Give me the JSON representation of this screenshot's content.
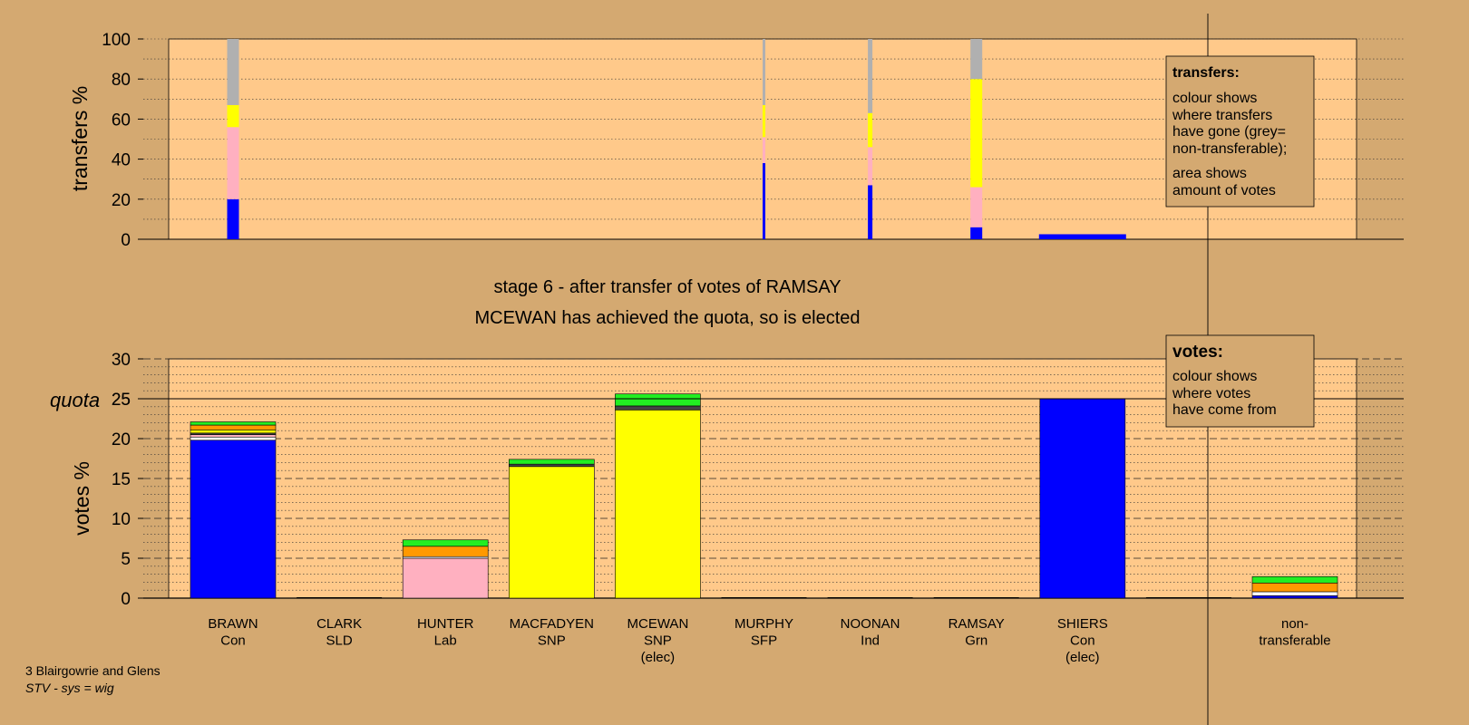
{
  "colors": {
    "page_bg": "#d4a971",
    "plot_bg": "#ffc98a",
    "Con": "#0000ff",
    "Lab": "#ffb0c0",
    "SNP": "#ffff00",
    "Grn": "#22ee22",
    "SFP": "#ff9900",
    "Ind": "#444444",
    "SLD": "#ffffff",
    "nontransferable": "#b0b0b0"
  },
  "headings": {
    "stage": "stage 6 - after transfer of votes of RAMSAY",
    "status": "MCEWAN has achieved the quota, so is elected"
  },
  "footer": {
    "line1": "3 Blairgowrie and Glens",
    "line2": "STV - sys = wig"
  },
  "legends": {
    "transfers": {
      "title": "transfers:",
      "lines1": [
        "colour shows",
        "where transfers",
        "have gone (grey=",
        "non-transferable);"
      ],
      "lines2": [
        "area shows",
        "amount of votes"
      ]
    },
    "votes": {
      "title": "votes:",
      "lines": [
        "colour shows",
        "where votes",
        "have come from"
      ]
    }
  },
  "chart_data": [
    {
      "type": "bar",
      "ylabel": "transfers %",
      "ylim": [
        0,
        100
      ],
      "yticks": [
        0,
        20,
        40,
        60,
        80,
        100
      ],
      "note": "stacked 100% bars; bar width proportional to amount of votes transferred",
      "bars": [
        {
          "candidate": "BRAWN",
          "segments": [
            {
              "party": "Con",
              "value": 20
            },
            {
              "party": "Lab",
              "value": 36
            },
            {
              "party": "SNP",
              "value": 11
            },
            {
              "party": "nontransferable",
              "value": 33
            }
          ]
        },
        {
          "candidate": "MURPHY",
          "segments": [
            {
              "party": "Con",
              "value": 38
            },
            {
              "party": "Lab",
              "value": 13
            },
            {
              "party": "SNP",
              "value": 16
            },
            {
              "party": "nontransferable",
              "value": 33
            }
          ]
        },
        {
          "candidate": "NOONAN",
          "segments": [
            {
              "party": "Con",
              "value": 27
            },
            {
              "party": "Lab",
              "value": 19
            },
            {
              "party": "SNP",
              "value": 17
            },
            {
              "party": "nontransferable",
              "value": 37
            }
          ]
        },
        {
          "candidate": "RAMSAY",
          "segments": [
            {
              "party": "Con",
              "value": 6
            },
            {
              "party": "Lab",
              "value": 20
            },
            {
              "party": "SNP",
              "value": 54
            },
            {
              "party": "nontransferable",
              "value": 20
            }
          ]
        },
        {
          "candidate": "SHIERS",
          "segments": [
            {
              "party": "Con",
              "value": 2.5
            }
          ]
        }
      ]
    },
    {
      "type": "bar",
      "ylabel": "votes %",
      "ylim": [
        0,
        30
      ],
      "yticks": [
        0,
        5,
        10,
        15,
        20,
        25,
        30
      ],
      "quota": {
        "label": "quota",
        "value": 25
      },
      "categories": [
        {
          "name": "BRAWN",
          "party": "Con",
          "elected": ""
        },
        {
          "name": "CLARK",
          "party": "SLD",
          "elected": ""
        },
        {
          "name": "HUNTER",
          "party": "Lab",
          "elected": ""
        },
        {
          "name": "MACFADYEN",
          "party": "SNP",
          "elected": ""
        },
        {
          "name": "MCEWAN",
          "party": "SNP",
          "elected": "(elec)"
        },
        {
          "name": "MURPHY",
          "party": "SFP",
          "elected": ""
        },
        {
          "name": "NOONAN",
          "party": "Ind",
          "elected": ""
        },
        {
          "name": "RAMSAY",
          "party": "Grn",
          "elected": ""
        },
        {
          "name": "SHIERS",
          "party": "Con",
          "elected": "(elec)"
        },
        {
          "name": "",
          "party": "",
          "elected": ""
        },
        {
          "name": "non-",
          "party": "transferable",
          "elected": ""
        }
      ],
      "stacks": [
        [
          {
            "party": "Con",
            "value": 19.8
          },
          {
            "party": "SLD",
            "value": 0.4
          },
          {
            "party": "Lab",
            "value": 0.3
          },
          {
            "party": "Ind",
            "value": 0.2
          },
          {
            "party": "SNP",
            "value": 0.4
          },
          {
            "party": "SFP",
            "value": 0.6
          },
          {
            "party": "Grn",
            "value": 0.4
          }
        ],
        [],
        [
          {
            "party": "Lab",
            "value": 5.0
          },
          {
            "party": "SLD",
            "value": 0.2
          },
          {
            "party": "SFP",
            "value": 1.3
          },
          {
            "party": "Grn",
            "value": 0.8
          }
        ],
        [
          {
            "party": "SNP",
            "value": 16.5
          },
          {
            "party": "Ind",
            "value": 0.3
          },
          {
            "party": "Grn",
            "value": 0.6
          }
        ],
        [
          {
            "party": "SNP",
            "value": 23.6
          },
          {
            "party": "Ind",
            "value": 0.5
          },
          {
            "party": "Grn",
            "value": 1.5
          }
        ],
        [],
        [],
        [],
        [
          {
            "party": "Con",
            "value": 25.0
          }
        ],
        [],
        [
          {
            "party": "Con",
            "value": 0.3
          },
          {
            "party": "SLD",
            "value": 0.5
          },
          {
            "party": "SFP",
            "value": 1.1
          },
          {
            "party": "Grn",
            "value": 0.8
          }
        ]
      ]
    }
  ]
}
